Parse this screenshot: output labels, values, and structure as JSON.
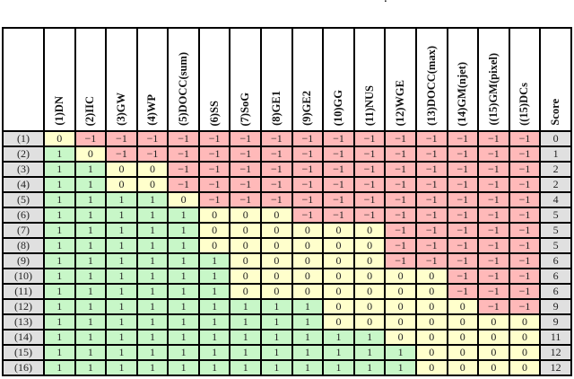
{
  "caption_fragment": ".",
  "colors": {
    "positive_bg": "#c8f7c8",
    "zero_bg": "#ffffcc",
    "negative_bg": "#ffb9b9",
    "label_bg": "#e0e0e0",
    "grid": "#000000"
  },
  "table": {
    "corner_label": "",
    "columns": [
      "(1)DN",
      "(2)IIC",
      "(3)GW",
      "(4)WP",
      "(5)DOCC(sum)",
      "(6)SS",
      "(7)SoG",
      "(8)GE1",
      "(9)GE2",
      "(10)GG",
      "(11)NUS",
      "(12)WGE",
      "(13)DOCC(max)",
      "(14)GM(njet)",
      "((15)GM(pixel)",
      "((15)DCs",
      "Score"
    ],
    "rows": [
      {
        "label": "(1)",
        "values": [
          0,
          -1,
          -1,
          -1,
          -1,
          -1,
          -1,
          -1,
          -1,
          -1,
          -1,
          -1,
          -1,
          -1,
          -1,
          -1
        ],
        "score": 0
      },
      {
        "label": "(2)",
        "values": [
          1,
          0,
          -1,
          -1,
          -1,
          -1,
          -1,
          -1,
          -1,
          -1,
          -1,
          -1,
          -1,
          -1,
          -1,
          -1
        ],
        "score": 1
      },
      {
        "label": "(3)",
        "values": [
          1,
          1,
          0,
          0,
          -1,
          -1,
          -1,
          -1,
          -1,
          -1,
          -1,
          -1,
          -1,
          -1,
          -1,
          -1
        ],
        "score": 2
      },
      {
        "label": "(4)",
        "values": [
          1,
          1,
          0,
          0,
          -1,
          -1,
          -1,
          -1,
          -1,
          -1,
          -1,
          -1,
          -1,
          -1,
          -1,
          -1
        ],
        "score": 2
      },
      {
        "label": "(5)",
        "values": [
          1,
          1,
          1,
          1,
          0,
          -1,
          -1,
          -1,
          -1,
          -1,
          -1,
          -1,
          -1,
          -1,
          -1,
          -1
        ],
        "score": 4
      },
      {
        "label": "(6)",
        "values": [
          1,
          1,
          1,
          1,
          1,
          0,
          0,
          0,
          -1,
          -1,
          -1,
          -1,
          -1,
          -1,
          -1,
          -1
        ],
        "score": 5
      },
      {
        "label": "(7)",
        "values": [
          1,
          1,
          1,
          1,
          1,
          0,
          0,
          0,
          0,
          0,
          0,
          -1,
          -1,
          -1,
          -1,
          -1
        ],
        "score": 5
      },
      {
        "label": "(8)",
        "values": [
          1,
          1,
          1,
          1,
          1,
          0,
          0,
          0,
          0,
          0,
          0,
          -1,
          -1,
          -1,
          -1,
          -1
        ],
        "score": 5
      },
      {
        "label": "(9)",
        "values": [
          1,
          1,
          1,
          1,
          1,
          1,
          0,
          0,
          0,
          0,
          0,
          -1,
          -1,
          -1,
          -1,
          -1
        ],
        "score": 6
      },
      {
        "label": "(10)",
        "values": [
          1,
          1,
          1,
          1,
          1,
          1,
          0,
          0,
          0,
          0,
          0,
          0,
          0,
          -1,
          -1,
          -1
        ],
        "score": 6
      },
      {
        "label": "(11)",
        "values": [
          1,
          1,
          1,
          1,
          1,
          1,
          0,
          0,
          0,
          0,
          0,
          0,
          0,
          -1,
          -1,
          -1
        ],
        "score": 6
      },
      {
        "label": "(12)",
        "values": [
          1,
          1,
          1,
          1,
          1,
          1,
          1,
          1,
          1,
          0,
          0,
          0,
          0,
          0,
          -1,
          -1
        ],
        "score": 9
      },
      {
        "label": "(13)",
        "values": [
          1,
          1,
          1,
          1,
          1,
          1,
          1,
          1,
          1,
          0,
          0,
          0,
          0,
          0,
          0,
          0
        ],
        "score": 9
      },
      {
        "label": "(14)",
        "values": [
          1,
          1,
          1,
          1,
          1,
          1,
          1,
          1,
          1,
          1,
          1,
          0,
          0,
          0,
          0,
          0
        ],
        "score": 11
      },
      {
        "label": "(15)",
        "values": [
          1,
          1,
          1,
          1,
          1,
          1,
          1,
          1,
          1,
          1,
          1,
          1,
          0,
          0,
          0,
          0
        ],
        "score": 12
      },
      {
        "label": "(16)",
        "values": [
          1,
          1,
          1,
          1,
          1,
          1,
          1,
          1,
          1,
          1,
          1,
          1,
          0,
          0,
          0,
          0
        ],
        "score": 12
      }
    ]
  }
}
